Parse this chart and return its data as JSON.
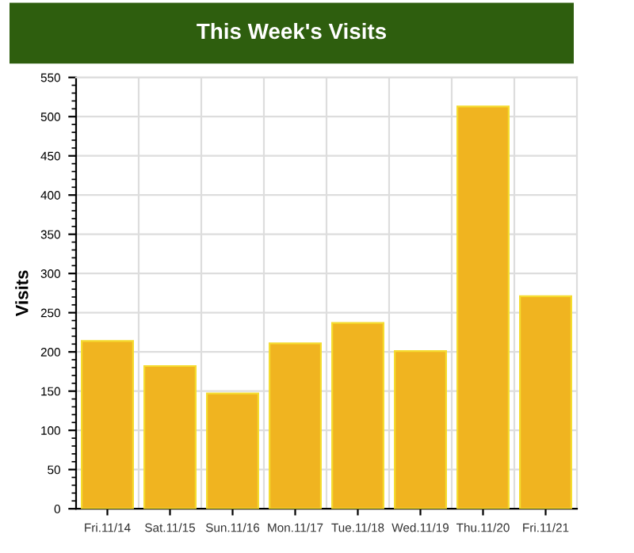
{
  "chart_data": {
    "type": "bar",
    "title": "This Week's Visits",
    "ylabel": "Visits",
    "categories": [
      "Fri.11/14",
      "Sat.11/15",
      "Sun.11/16",
      "Mon.11/17",
      "Tue.11/18",
      "Wed.11/19",
      "Thu.11/20",
      "Fri.11/21"
    ],
    "values": [
      214,
      182,
      147,
      211,
      237,
      201,
      513,
      271
    ],
    "color": "#f0b420",
    "ylim": [
      0,
      550
    ],
    "yticks": [
      0,
      50,
      100,
      150,
      200,
      250,
      300,
      350,
      400,
      450,
      500,
      550
    ],
    "grid": true
  }
}
